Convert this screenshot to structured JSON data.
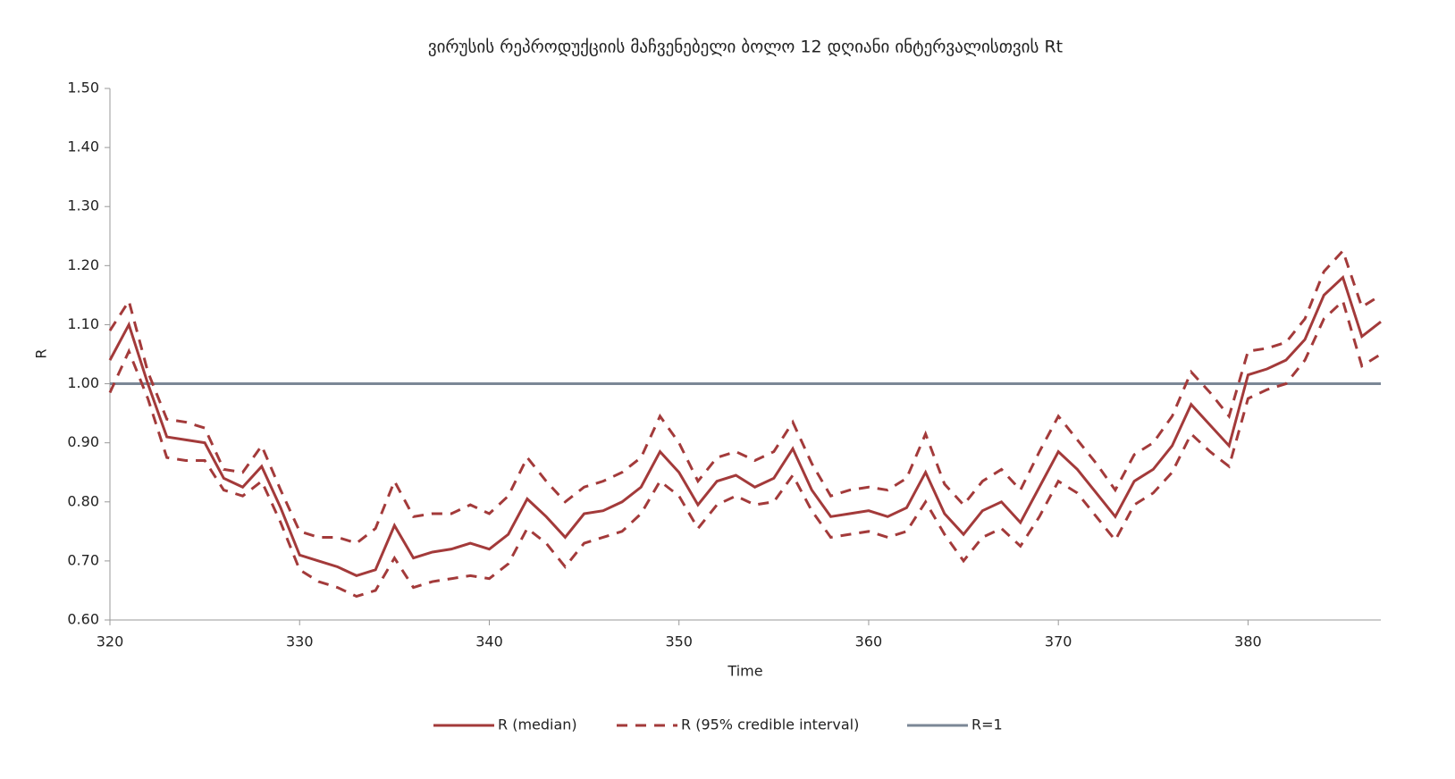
{
  "chart_data": {
    "type": "line",
    "title": "ვირუსის რეპროდუქციის მაჩვენებელი ბოლო 12 დღიანი ინტერვალისთვის Rt",
    "xlabel": "Time",
    "ylabel": "R",
    "x": [
      320,
      321,
      322,
      323,
      324,
      325,
      326,
      327,
      328,
      329,
      330,
      331,
      332,
      333,
      334,
      335,
      336,
      337,
      338,
      339,
      340,
      341,
      342,
      343,
      344,
      345,
      346,
      347,
      348,
      349,
      350,
      351,
      352,
      353,
      354,
      355,
      356,
      357,
      358,
      359,
      360,
      361,
      362,
      363,
      364,
      365,
      366,
      367,
      368,
      369,
      370,
      371,
      372,
      373,
      374,
      375,
      376,
      377,
      378,
      379,
      380,
      381,
      382,
      383,
      384,
      385,
      386,
      387
    ],
    "series": [
      {
        "name": "R (median)",
        "color": "#a33a3a",
        "dash": false,
        "values": [
          1.04,
          1.1,
          1.0,
          0.91,
          0.905,
          0.9,
          0.84,
          0.825,
          0.86,
          0.79,
          0.71,
          0.7,
          0.69,
          0.675,
          0.685,
          0.76,
          0.705,
          0.715,
          0.72,
          0.73,
          0.72,
          0.745,
          0.805,
          0.775,
          0.74,
          0.78,
          0.785,
          0.8,
          0.825,
          0.885,
          0.85,
          0.795,
          0.835,
          0.845,
          0.825,
          0.84,
          0.89,
          0.82,
          0.775,
          0.78,
          0.785,
          0.775,
          0.79,
          0.85,
          0.78,
          0.745,
          0.785,
          0.8,
          0.765,
          0.825,
          0.885,
          0.855,
          0.815,
          0.775,
          0.835,
          0.855,
          0.895,
          0.965,
          0.93,
          0.895,
          1.015,
          1.025,
          1.04,
          1.075,
          1.15,
          1.18,
          1.08,
          1.105
        ]
      },
      {
        "name": "R (95% credible interval)",
        "color": "#a33a3a",
        "dash": true,
        "values": [
          1.09,
          1.14,
          1.02,
          0.94,
          0.935,
          0.925,
          0.855,
          0.85,
          0.895,
          0.82,
          0.75,
          0.74,
          0.74,
          0.73,
          0.755,
          0.835,
          0.775,
          0.78,
          0.78,
          0.795,
          0.78,
          0.81,
          0.875,
          0.835,
          0.8,
          0.825,
          0.835,
          0.85,
          0.875,
          0.945,
          0.9,
          0.835,
          0.875,
          0.885,
          0.87,
          0.885,
          0.935,
          0.865,
          0.81,
          0.82,
          0.825,
          0.82,
          0.84,
          0.915,
          0.83,
          0.795,
          0.835,
          0.855,
          0.82,
          0.885,
          0.945,
          0.905,
          0.865,
          0.82,
          0.88,
          0.9,
          0.945,
          1.02,
          0.985,
          0.945,
          1.055,
          1.06,
          1.07,
          1.11,
          1.19,
          1.225,
          1.13,
          1.15
        ],
        "lower": [
          0.985,
          1.055,
          0.975,
          0.875,
          0.87,
          0.87,
          0.82,
          0.81,
          0.835,
          0.765,
          0.685,
          0.665,
          0.655,
          0.64,
          0.65,
          0.705,
          0.655,
          0.665,
          0.67,
          0.675,
          0.67,
          0.695,
          0.755,
          0.73,
          0.69,
          0.73,
          0.74,
          0.75,
          0.78,
          0.835,
          0.81,
          0.755,
          0.795,
          0.81,
          0.795,
          0.8,
          0.845,
          0.785,
          0.74,
          0.745,
          0.75,
          0.74,
          0.75,
          0.8,
          0.745,
          0.7,
          0.74,
          0.755,
          0.725,
          0.775,
          0.835,
          0.815,
          0.775,
          0.735,
          0.795,
          0.815,
          0.85,
          0.915,
          0.885,
          0.86,
          0.975,
          0.99,
          1.0,
          1.04,
          1.11,
          1.14,
          1.03,
          1.05
        ]
      }
    ],
    "hlines": [
      {
        "name": "R=1",
        "value": 1,
        "color": "#7b8796"
      }
    ],
    "xlim": [
      320,
      387
    ],
    "xticks": [
      320,
      330,
      340,
      350,
      360,
      370,
      380
    ],
    "ylim": [
      0.6,
      1.5
    ],
    "yticks": [
      {
        "value": 0.6,
        "label": "0.60"
      },
      {
        "value": 0.7,
        "label": "0.70"
      },
      {
        "value": 0.8,
        "label": "0.80"
      },
      {
        "value": 0.9,
        "label": "0.90"
      },
      {
        "value": 1.0,
        "label": "1.00"
      },
      {
        "value": 1.1,
        "label": "1.10"
      },
      {
        "value": 1.2,
        "label": "1.20"
      },
      {
        "value": 1.3,
        "label": "1.30"
      },
      {
        "value": 1.4,
        "label": "1.40"
      },
      {
        "value": 1.5,
        "label": "1.50"
      }
    ],
    "legend": "bottom"
  }
}
